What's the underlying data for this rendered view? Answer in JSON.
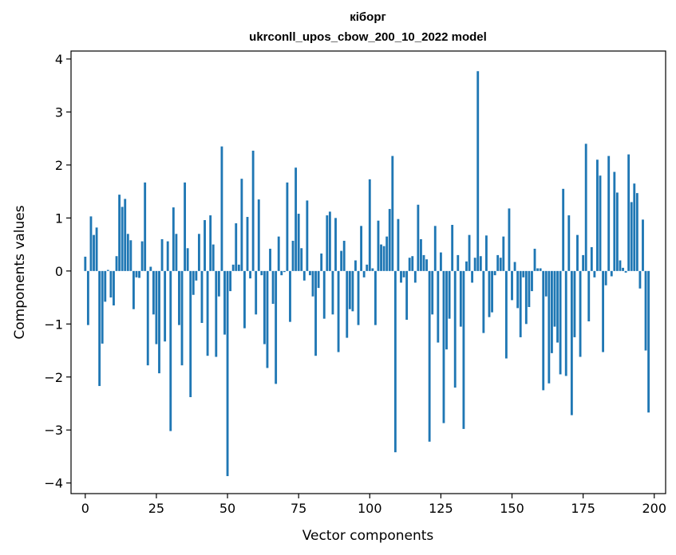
{
  "chart_data": {
    "type": "bar",
    "title_lines": [
      "кіборг",
      "ukrconll_upos_cbow_200_10_2022 model"
    ],
    "xlabel": "Vector components",
    "ylabel": "Components values",
    "xlim": [
      -5,
      204
    ],
    "ylim": [
      -4.2,
      4.15
    ],
    "xticks": [
      0,
      25,
      50,
      75,
      100,
      125,
      150,
      175,
      200
    ],
    "yticks": [
      -4,
      -3,
      -2,
      -1,
      0,
      1,
      2,
      3,
      4
    ],
    "bar_color": "#1f77b4",
    "grid": false,
    "legend": "none",
    "values": [
      0.27,
      -1.02,
      1.03,
      0.68,
      0.82,
      -2.17,
      -1.37,
      -0.58,
      0.02,
      -0.5,
      -0.65,
      0.28,
      1.44,
      1.21,
      1.36,
      0.7,
      0.58,
      -0.72,
      -0.12,
      -0.13,
      0.56,
      1.67,
      -1.78,
      0.08,
      -0.82,
      -1.38,
      -1.93,
      0.6,
      -1.33,
      0.56,
      -3.02,
      1.2,
      0.7,
      -1.02,
      -1.78,
      1.67,
      0.43,
      -2.38,
      -0.45,
      -0.18,
      0.7,
      -0.98,
      0.96,
      -1.6,
      1.05,
      0.5,
      -1.62,
      -0.48,
      2.35,
      -1.2,
      -3.87,
      -0.38,
      0.12,
      0.9,
      0.12,
      1.74,
      -1.08,
      1.02,
      -0.14,
      2.27,
      -0.82,
      1.35,
      -0.08,
      -1.38,
      -1.83,
      0.42,
      -0.62,
      -2.13,
      0.65,
      -0.08,
      -0.02,
      1.67,
      -0.96,
      0.57,
      1.95,
      1.08,
      0.43,
      -0.18,
      1.33,
      -0.08,
      -0.48,
      -1.6,
      -0.32,
      0.33,
      -0.9,
      1.05,
      1.12,
      -0.82,
      1.0,
      -1.53,
      0.38,
      0.57,
      -1.26,
      -0.72,
      -0.76,
      0.2,
      -1.02,
      0.85,
      -0.12,
      0.12,
      1.73,
      0.05,
      -1.02,
      0.95,
      0.5,
      0.47,
      0.65,
      1.17,
      2.17,
      -3.42,
      0.98,
      -0.22,
      -0.12,
      -0.92,
      0.25,
      0.28,
      -0.22,
      1.25,
      0.6,
      0.3,
      0.22,
      -3.22,
      -0.82,
      0.85,
      -1.35,
      0.35,
      -2.87,
      -1.48,
      -0.9,
      0.87,
      -2.2,
      0.3,
      -1.05,
      -2.98,
      0.18,
      0.68,
      -0.22,
      0.25,
      3.77,
      0.28,
      -1.17,
      0.67,
      -0.87,
      -0.78,
      -0.08,
      0.3,
      0.25,
      0.65,
      -1.65,
      1.18,
      -0.55,
      0.17,
      -0.7,
      -1.25,
      -0.12,
      -1.0,
      -0.68,
      -0.38,
      0.42,
      0.05,
      0.05,
      -2.25,
      -0.48,
      -2.12,
      -1.55,
      -1.05,
      -1.35,
      -1.95,
      1.55,
      -1.98,
      1.05,
      -2.72,
      -1.25,
      0.68,
      -1.62,
      0.3,
      2.4,
      -0.95,
      0.45,
      -0.12,
      2.1,
      1.8,
      -1.53,
      -0.27,
      2.17,
      -0.1,
      1.87,
      1.48,
      0.2,
      0.06,
      -0.03,
      2.2,
      1.3,
      1.65,
      1.47,
      -0.33,
      0.97,
      -1.5,
      -2.67
    ]
  }
}
